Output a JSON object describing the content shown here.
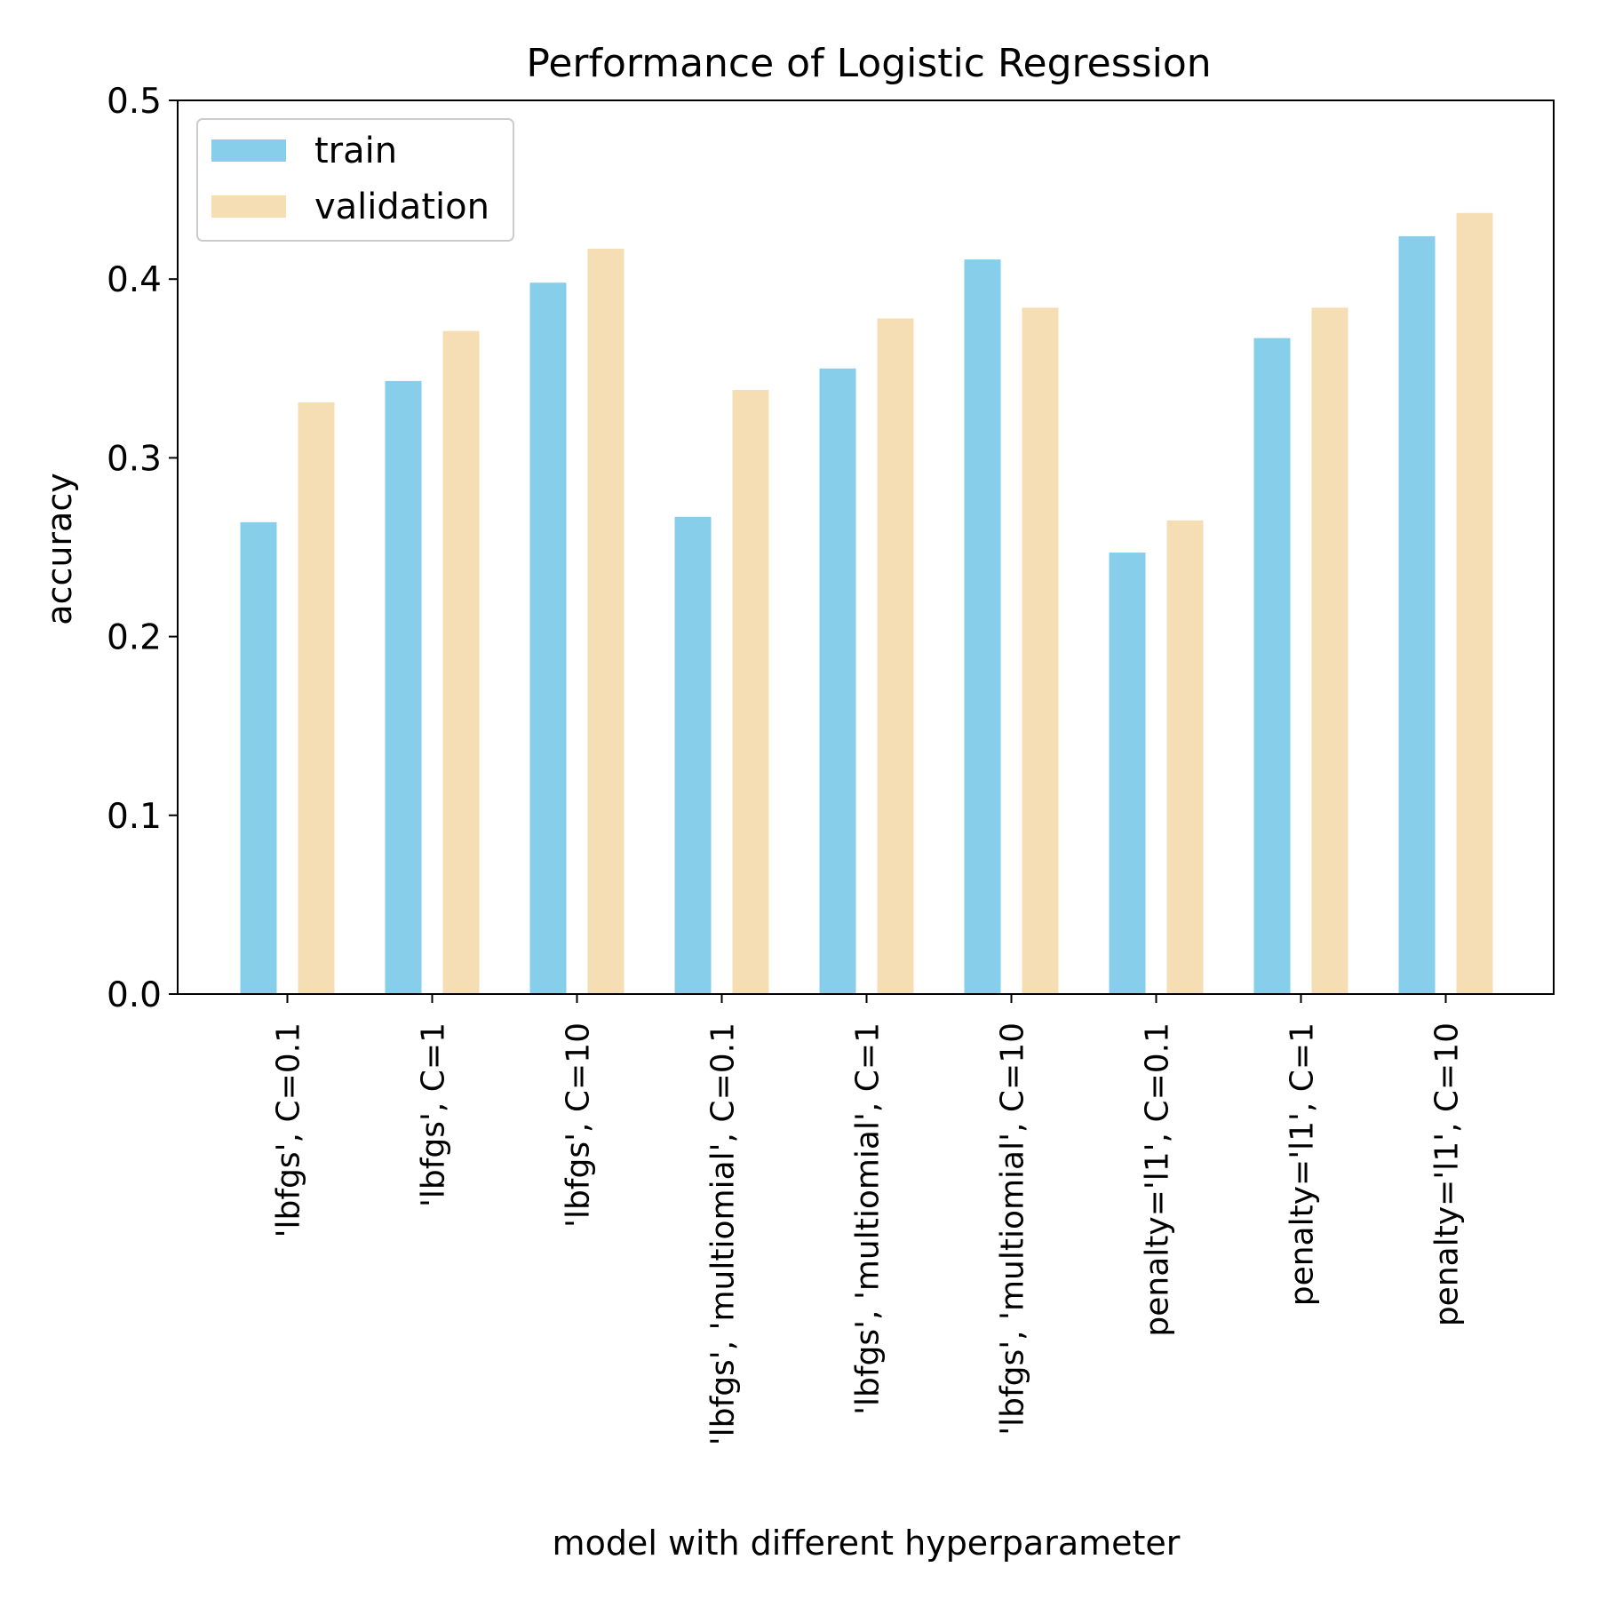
{
  "chart_data": {
    "type": "bar",
    "title": "Performance of Logistic Regression",
    "xlabel": "model with different hyperparameter",
    "ylabel": "accuracy",
    "ylim": [
      0,
      0.5
    ],
    "yticks": [
      "0.0",
      "0.1",
      "0.2",
      "0.3",
      "0.4",
      "0.5"
    ],
    "grid": false,
    "legend_position": "top-left",
    "categories": [
      "'lbfgs', C=0.1",
      "'lbfgs', C=1",
      "'lbfgs', C=10",
      "'lbfgs', 'multiomial', C=0.1",
      "'lbfgs', 'multiomial', C=1",
      "'lbfgs', 'multiomial', C=10",
      "penalty='l1', C=0.1",
      "penalty='l1', C=1",
      "penalty='l1', C=10"
    ],
    "series": [
      {
        "name": "train",
        "color": "#87ceeb",
        "values": [
          0.264,
          0.343,
          0.398,
          0.267,
          0.35,
          0.411,
          0.247,
          0.367,
          0.424
        ]
      },
      {
        "name": "validation",
        "color": "#f5deb3",
        "values": [
          0.331,
          0.371,
          0.417,
          0.338,
          0.378,
          0.384,
          0.265,
          0.384,
          0.437
        ]
      }
    ]
  }
}
